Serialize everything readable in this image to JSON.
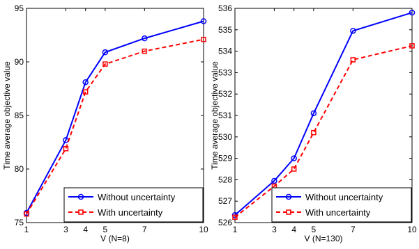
{
  "chart_data": [
    {
      "type": "line",
      "xlabel": "V (N=8)",
      "ylabel": "Time average objective value",
      "xlim": [
        1,
        10
      ],
      "ylim": [
        75,
        95
      ],
      "xticks": [
        1,
        3,
        4,
        5,
        7,
        10
      ],
      "yticks": [
        75,
        80,
        85,
        90,
        95
      ],
      "grid": false,
      "legend_position": "bottom-right",
      "series": [
        {
          "name": "Without uncertainty",
          "color": "#0000ff",
          "line_style": "solid",
          "marker": "circle",
          "x": [
            1,
            3,
            4,
            5,
            7,
            10
          ],
          "y": [
            75.9,
            82.7,
            88.1,
            90.9,
            92.2,
            93.8
          ]
        },
        {
          "name": "With uncertainty",
          "color": "#ff0000",
          "line_style": "dashed",
          "marker": "square",
          "x": [
            1,
            3,
            4,
            5,
            7,
            10
          ],
          "y": [
            75.8,
            81.9,
            87.2,
            89.8,
            91.0,
            92.1
          ]
        }
      ]
    },
    {
      "type": "line",
      "xlabel": "V (N=130)",
      "ylabel": "Time average objective value",
      "xlim": [
        1,
        10
      ],
      "ylim": [
        526,
        536
      ],
      "xticks": [
        1,
        3,
        4,
        5,
        7,
        10
      ],
      "yticks": [
        526,
        527,
        528,
        529,
        530,
        531,
        532,
        533,
        534,
        535,
        536
      ],
      "grid": false,
      "legend_position": "bottom-right",
      "series": [
        {
          "name": "Without uncertainty",
          "color": "#0000ff",
          "line_style": "solid",
          "marker": "circle",
          "x": [
            1,
            3,
            4,
            5,
            7,
            10
          ],
          "y": [
            526.35,
            527.95,
            529.0,
            531.1,
            534.95,
            535.8
          ]
        },
        {
          "name": "With uncertainty",
          "color": "#ff0000",
          "line_style": "dashed",
          "marker": "square",
          "x": [
            1,
            3,
            4,
            5,
            7,
            10
          ],
          "y": [
            526.25,
            527.7,
            528.5,
            530.2,
            533.6,
            534.25
          ]
        }
      ]
    }
  ]
}
